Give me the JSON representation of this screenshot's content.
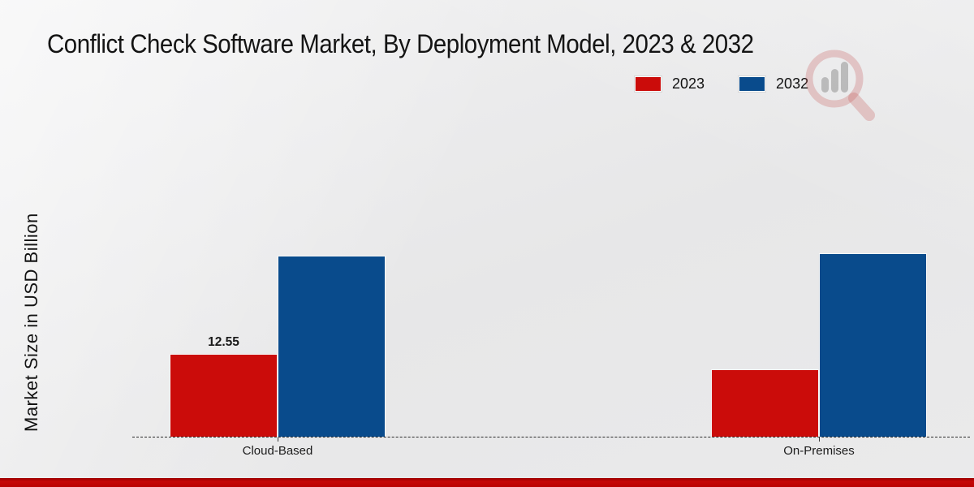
{
  "title": "Conflict Check Software Market, By Deployment Model, 2023 & 2032",
  "ylabel": "Market Size in USD Billion",
  "watermark_icon": "magnifier-bar-chart-logo",
  "footer_accent_color": "#c00000",
  "chart_data": {
    "type": "bar",
    "title": "Conflict Check Software Market, By Deployment Model, 2023 & 2032",
    "categories": [
      "Cloud-Based",
      "On-Premises"
    ],
    "series": [
      {
        "name": "2023",
        "color": "#cb0c0a",
        "values": [
          12.55,
          10.2
        ]
      },
      {
        "name": "2032",
        "color": "#094b8c",
        "values": [
          27.4,
          27.8
        ]
      }
    ],
    "data_labels": [
      {
        "category": "Cloud-Based",
        "series": "2023",
        "text": "12.55"
      }
    ],
    "xlabel": "",
    "ylabel": "Market Size in USD Billion",
    "ylim": [
      0,
      30
    ],
    "grid": false,
    "legend_position": "top-right",
    "baseline_style": "dashed"
  }
}
